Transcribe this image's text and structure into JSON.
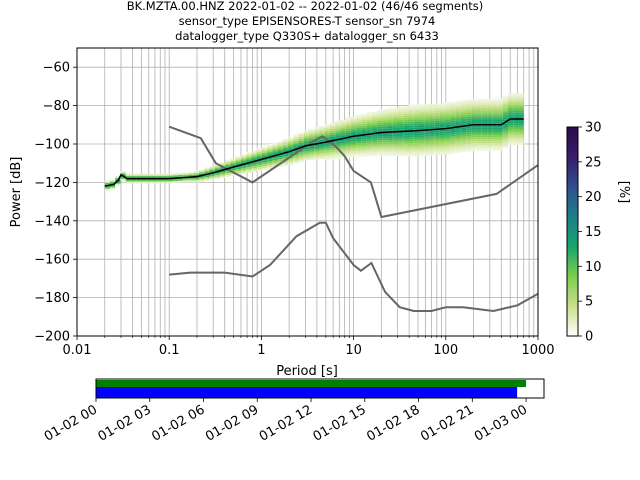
{
  "title_lines": [
    "BK.MZTA.00.HNZ   2022-01-02 -- 2022-01-02  (46/46 segments)",
    "sensor_type EPISENSORES-T sensor_sn 7974",
    "datalogger_type Q330S+ datalogger_sn 6433"
  ],
  "chart_data": [
    {
      "type": "heatmap",
      "xlabel": "Period [s]",
      "ylabel": "Power [dB]",
      "x_scale": "log",
      "xlim": [
        0.01,
        1000
      ],
      "ylim": [
        -200,
        -50
      ],
      "grid": true,
      "x_ticks": [
        {
          "value": 0.01,
          "label": "0.01"
        },
        {
          "value": 0.1,
          "label": "0.1"
        },
        {
          "value": 1,
          "label": "1"
        },
        {
          "value": 10,
          "label": "10"
        },
        {
          "value": 100,
          "label": "100"
        },
        {
          "value": 1000,
          "label": "1000"
        }
      ],
      "y_ticks": [
        {
          "value": -60,
          "label": "−60"
        },
        {
          "value": -80,
          "label": "−80"
        },
        {
          "value": -100,
          "label": "−100"
        },
        {
          "value": -120,
          "label": "−120"
        },
        {
          "value": -140,
          "label": "−140"
        },
        {
          "value": -160,
          "label": "−160"
        },
        {
          "value": -180,
          "label": "−180"
        },
        {
          "value": -200,
          "label": "−200"
        }
      ],
      "colorbar": {
        "label": "[%]",
        "range": [
          0,
          30
        ],
        "ticks": [
          {
            "value": 0,
            "label": "0"
          },
          {
            "value": 5,
            "label": "5"
          },
          {
            "value": 10,
            "label": "10"
          },
          {
            "value": 15,
            "label": "15"
          },
          {
            "value": 20,
            "label": "20"
          },
          {
            "value": 25,
            "label": "25"
          },
          {
            "value": 30,
            "label": "30"
          }
        ],
        "colormap": "pqlx",
        "colors": [
          "#ffffff",
          "#c8e08a",
          "#7ccd4c",
          "#19a46c",
          "#1e7f8a",
          "#2f4f8f",
          "#3a1c6e",
          "#2a0a4a"
        ]
      },
      "mean_curve": {
        "color": "#000000",
        "points": [
          [
            0.02,
            -122
          ],
          [
            0.025,
            -121
          ],
          [
            0.028,
            -119
          ],
          [
            0.03,
            -116
          ],
          [
            0.035,
            -118
          ],
          [
            0.05,
            -118
          ],
          [
            0.1,
            -118
          ],
          [
            0.2,
            -117
          ],
          [
            0.3,
            -115
          ],
          [
            0.5,
            -112
          ],
          [
            1,
            -108
          ],
          [
            2,
            -104
          ],
          [
            3,
            -101
          ],
          [
            5,
            -99
          ],
          [
            10,
            -96
          ],
          [
            20,
            -94
          ],
          [
            50,
            -93
          ],
          [
            100,
            -92
          ],
          [
            200,
            -90
          ],
          [
            400,
            -90
          ],
          [
            500,
            -87
          ],
          [
            700,
            -87
          ]
        ]
      },
      "noise_models": [
        {
          "name": "high",
          "color": "#666666",
          "points": [
            [
              0.1,
              -91
            ],
            [
              0.22,
              -97
            ],
            [
              0.32,
              -110
            ],
            [
              0.8,
              -120
            ],
            [
              3.8,
              -98
            ],
            [
              4.6,
              -96
            ],
            [
              6.3,
              -101
            ],
            [
              7.9,
              -106
            ],
            [
              10,
              -114
            ],
            [
              15.4,
              -120
            ],
            [
              20,
              -138
            ],
            [
              354.8,
              -126
            ],
            [
              1000,
              -111
            ]
          ]
        },
        {
          "name": "low",
          "color": "#666666",
          "points": [
            [
              0.1,
              -168
            ],
            [
              0.17,
              -167
            ],
            [
              0.4,
              -167
            ],
            [
              0.8,
              -169
            ],
            [
              1.24,
              -163
            ],
            [
              2.4,
              -148
            ],
            [
              4.3,
              -141
            ],
            [
              5,
              -141
            ],
            [
              6,
              -149
            ],
            [
              10,
              -163
            ],
            [
              12,
              -166
            ],
            [
              15.6,
              -162
            ],
            [
              21.9,
              -177
            ],
            [
              31.6,
              -185
            ],
            [
              45,
              -187
            ],
            [
              70,
              -187
            ],
            [
              100,
              -185
            ],
            [
              154,
              -185
            ],
            [
              328,
              -187
            ],
            [
              600,
              -184
            ],
            [
              1000,
              -178
            ]
          ]
        }
      ]
    },
    {
      "type": "bar",
      "orientation": "horizontal",
      "xlim": [
        "2022-01-02 00:00",
        "2022-01-03 01:00"
      ],
      "x_ticks": [
        "01-02 00",
        "01-02 03",
        "01-02 06",
        "01-02 09",
        "01-02 12",
        "01-02 15",
        "01-02 18",
        "01-02 21",
        "01-03 00"
      ],
      "series": [
        {
          "color": "#008000",
          "start": "2022-01-02 00:00",
          "end": "2022-01-03 00:00"
        },
        {
          "color": "#0000ff",
          "start": "2022-01-02 00:00",
          "end": "2022-01-02 23:30"
        }
      ]
    }
  ]
}
